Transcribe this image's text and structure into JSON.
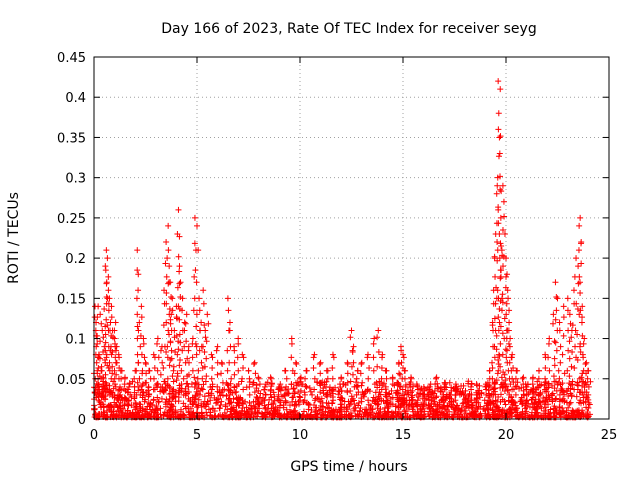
{
  "chart_data": {
    "type": "scatter",
    "title": "Day 166 of 2023, Rate Of TEC Index for receiver seyg",
    "xlabel": "GPS time / hours",
    "ylabel": "ROTI / TECUs",
    "xlim": [
      0,
      25
    ],
    "ylim": [
      0,
      0.45
    ],
    "x_ticks": [
      0,
      5,
      10,
      15,
      20,
      25
    ],
    "y_ticks": [
      0,
      0.05,
      0.1,
      0.15,
      0.2,
      0.25,
      0.3,
      0.35,
      0.4,
      0.45
    ],
    "x_tick_labels": [
      "0",
      "5",
      "10",
      "15",
      "20",
      "25"
    ],
    "y_tick_labels": [
      "0",
      "0.05",
      "0.1",
      "0.15",
      "0.2",
      "0.25",
      "0.3",
      "0.35",
      "0.4",
      "0.45"
    ],
    "grid": true,
    "marker": "+",
    "series": [
      {
        "name": "ROTI",
        "color": "#ff0000",
        "points": [
          [
            0.05,
            0.14
          ],
          [
            0.1,
            0.12
          ],
          [
            0.15,
            0.1
          ],
          [
            0.2,
            0.14
          ],
          [
            0.25,
            0.08
          ],
          [
            0.3,
            0.13
          ],
          [
            0.35,
            0.06
          ],
          [
            0.4,
            0.11
          ],
          [
            0.45,
            0.05
          ],
          [
            0.5,
            0.09
          ],
          [
            0.55,
            0.19
          ],
          [
            0.6,
            0.21
          ],
          [
            0.62,
            0.17
          ],
          [
            0.65,
            0.2
          ],
          [
            0.7,
            0.16
          ],
          [
            0.75,
            0.15
          ],
          [
            0.8,
            0.12
          ],
          [
            0.85,
            0.14
          ],
          [
            0.9,
            0.11
          ],
          [
            1.0,
            0.1
          ],
          [
            1.05,
            0.12
          ],
          [
            1.1,
            0.09
          ],
          [
            1.2,
            0.08
          ],
          [
            1.3,
            0.06
          ],
          [
            1.5,
            0.05
          ],
          [
            1.7,
            0.04
          ],
          [
            2.0,
            0.06
          ],
          [
            2.1,
            0.21
          ],
          [
            2.15,
            0.18
          ],
          [
            2.2,
            0.12
          ],
          [
            2.3,
            0.14
          ],
          [
            2.4,
            0.1
          ],
          [
            2.5,
            0.07
          ],
          [
            2.7,
            0.06
          ],
          [
            2.9,
            0.08
          ],
          [
            3.1,
            0.1
          ],
          [
            3.3,
            0.09
          ],
          [
            3.4,
            0.16
          ],
          [
            3.5,
            0.22
          ],
          [
            3.55,
            0.2
          ],
          [
            3.6,
            0.24
          ],
          [
            3.65,
            0.19
          ],
          [
            3.7,
            0.17
          ],
          [
            3.75,
            0.13
          ],
          [
            3.8,
            0.15
          ],
          [
            3.9,
            0.11
          ],
          [
            4.0,
            0.14
          ],
          [
            4.05,
            0.23
          ],
          [
            4.1,
            0.26
          ],
          [
            4.15,
            0.19
          ],
          [
            4.2,
            0.17
          ],
          [
            4.3,
            0.15
          ],
          [
            4.4,
            0.12
          ],
          [
            4.5,
            0.13
          ],
          [
            4.6,
            0.09
          ],
          [
            4.8,
            0.1
          ],
          [
            4.9,
            0.25
          ],
          [
            4.95,
            0.21
          ],
          [
            5.0,
            0.24
          ],
          [
            5.1,
            0.15
          ],
          [
            5.2,
            0.12
          ],
          [
            5.3,
            0.16
          ],
          [
            5.4,
            0.11
          ],
          [
            5.5,
            0.13
          ],
          [
            5.7,
            0.08
          ],
          [
            6.0,
            0.09
          ],
          [
            6.2,
            0.07
          ],
          [
            6.5,
            0.15
          ],
          [
            6.6,
            0.12
          ],
          [
            6.8,
            0.09
          ],
          [
            7.0,
            0.1
          ],
          [
            7.2,
            0.08
          ],
          [
            7.5,
            0.06
          ],
          [
            7.8,
            0.07
          ],
          [
            8.0,
            0.05
          ],
          [
            8.3,
            0.04
          ],
          [
            8.6,
            0.05
          ],
          [
            9.0,
            0.04
          ],
          [
            9.3,
            0.06
          ],
          [
            9.6,
            0.1
          ],
          [
            9.8,
            0.07
          ],
          [
            10.0,
            0.05
          ],
          [
            10.3,
            0.06
          ],
          [
            10.7,
            0.08
          ],
          [
            11.0,
            0.07
          ],
          [
            11.3,
            0.06
          ],
          [
            11.6,
            0.08
          ],
          [
            12.0,
            0.05
          ],
          [
            12.3,
            0.07
          ],
          [
            12.5,
            0.11
          ],
          [
            12.6,
            0.09
          ],
          [
            12.8,
            0.06
          ],
          [
            13.0,
            0.07
          ],
          [
            13.3,
            0.08
          ],
          [
            13.6,
            0.1
          ],
          [
            13.8,
            0.11
          ],
          [
            14.0,
            0.08
          ],
          [
            14.2,
            0.06
          ],
          [
            14.5,
            0.05
          ],
          [
            14.8,
            0.07
          ],
          [
            14.9,
            0.09
          ],
          [
            15.0,
            0.08
          ],
          [
            15.1,
            0.06
          ],
          [
            15.4,
            0.05
          ],
          [
            15.7,
            0.04
          ],
          [
            16.0,
            0.03
          ],
          [
            16.3,
            0.04
          ],
          [
            16.6,
            0.05
          ],
          [
            17.0,
            0.04
          ],
          [
            17.3,
            0.03
          ],
          [
            17.6,
            0.04
          ],
          [
            18.0,
            0.03
          ],
          [
            18.3,
            0.04
          ],
          [
            18.6,
            0.03
          ],
          [
            19.0,
            0.04
          ],
          [
            19.2,
            0.06
          ],
          [
            19.35,
            0.12
          ],
          [
            19.4,
            0.16
          ],
          [
            19.45,
            0.2
          ],
          [
            19.5,
            0.23
          ],
          [
            19.55,
            0.28
          ],
          [
            19.6,
            0.3
          ],
          [
            19.62,
            0.42
          ],
          [
            19.65,
            0.38
          ],
          [
            19.68,
            0.35
          ],
          [
            19.7,
            0.33
          ],
          [
            19.72,
            0.41
          ],
          [
            19.75,
            0.25
          ],
          [
            19.8,
            0.21
          ],
          [
            19.85,
            0.29
          ],
          [
            19.9,
            0.27
          ],
          [
            19.95,
            0.23
          ],
          [
            20.0,
            0.2
          ],
          [
            20.05,
            0.18
          ],
          [
            20.1,
            0.15
          ],
          [
            20.15,
            0.12
          ],
          [
            20.2,
            0.1
          ],
          [
            20.3,
            0.08
          ],
          [
            20.5,
            0.06
          ],
          [
            20.8,
            0.05
          ],
          [
            21.0,
            0.04
          ],
          [
            21.3,
            0.05
          ],
          [
            21.6,
            0.06
          ],
          [
            21.9,
            0.08
          ],
          [
            22.1,
            0.1
          ],
          [
            22.3,
            0.13
          ],
          [
            22.4,
            0.17
          ],
          [
            22.5,
            0.15
          ],
          [
            22.6,
            0.12
          ],
          [
            22.8,
            0.14
          ],
          [
            23.0,
            0.15
          ],
          [
            23.1,
            0.13
          ],
          [
            23.2,
            0.11
          ],
          [
            23.3,
            0.16
          ],
          [
            23.4,
            0.2
          ],
          [
            23.5,
            0.19
          ],
          [
            23.55,
            0.24
          ],
          [
            23.6,
            0.25
          ],
          [
            23.65,
            0.22
          ],
          [
            23.7,
            0.14
          ],
          [
            23.8,
            0.1
          ],
          [
            23.9,
            0.07
          ],
          [
            24.0,
            0.06
          ]
        ]
      }
    ]
  }
}
